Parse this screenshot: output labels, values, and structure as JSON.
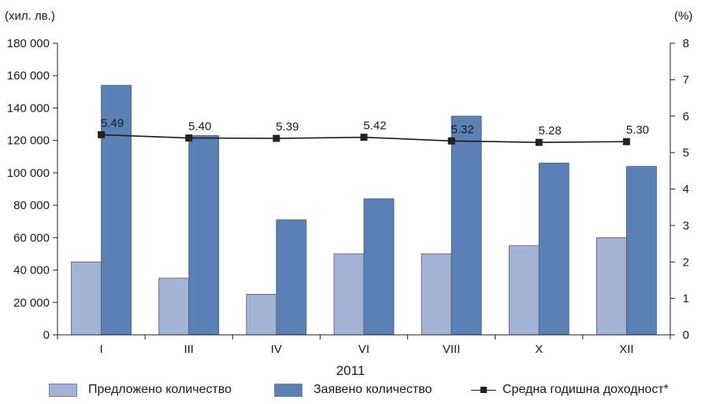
{
  "chart_data": {
    "type": "bar",
    "categories": [
      "I",
      "III",
      "IV",
      "VI",
      "VIII",
      "X",
      "XII"
    ],
    "series": [
      {
        "name": "Предложено количество",
        "type": "bar",
        "axis": "left",
        "color": "#a3b3d6",
        "values": [
          45000,
          35000,
          25000,
          50000,
          50000,
          55000,
          60000
        ]
      },
      {
        "name": "Заявено количество",
        "type": "bar",
        "axis": "left",
        "color": "#5a80b6",
        "values": [
          154000,
          123000,
          71000,
          84000,
          135000,
          106000,
          104000
        ]
      },
      {
        "name": "Средна годишна доходност*",
        "type": "line",
        "axis": "right",
        "color": "#1a1a1a",
        "values": [
          5.49,
          5.4,
          5.39,
          5.42,
          5.32,
          5.28,
          5.3
        ],
        "labels": [
          "5.49",
          "5.40",
          "5.39",
          "5.42",
          "5.32",
          "5.28",
          "5.30"
        ]
      }
    ],
    "xlabel": "2011",
    "ylabel_left": "(хил. лв.)",
    "ylabel_right": "(%)",
    "ylim_left": [
      0,
      180000
    ],
    "ylim_right": [
      0,
      8
    ],
    "yticks_left": [
      "0",
      "20 000",
      "40 000",
      "60 000",
      "80 000",
      "100 000",
      "120 000",
      "140 000",
      "160 000",
      "180 000"
    ],
    "yticks_right": [
      "0",
      "1",
      "2",
      "3",
      "4",
      "5",
      "6",
      "7",
      "8"
    ],
    "grid": false,
    "legend_position": "bottom"
  }
}
